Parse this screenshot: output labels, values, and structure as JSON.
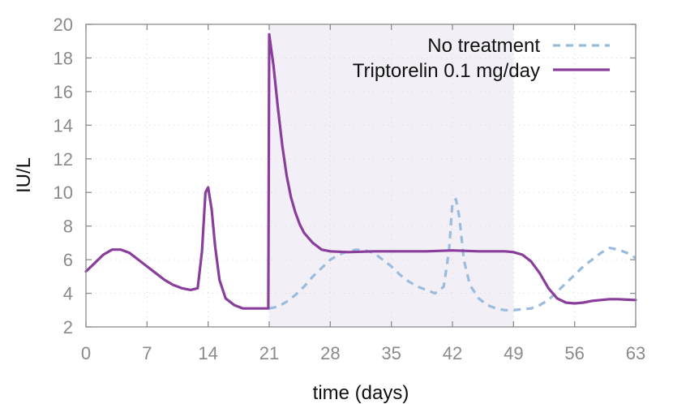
{
  "chart_data": {
    "type": "line",
    "xlabel": "time (days)",
    "ylabel": "IU/L",
    "xlim": [
      0,
      63
    ],
    "ylim": [
      2,
      20
    ],
    "x_ticks": [
      0,
      7,
      14,
      21,
      28,
      35,
      42,
      49,
      56,
      63
    ],
    "y_ticks": [
      2,
      4,
      6,
      8,
      10,
      12,
      14,
      16,
      18,
      20
    ],
    "grid": true,
    "legend_position": "top-right",
    "shaded_region": {
      "x_start": 21,
      "x_end": 49,
      "color": "#f3eff7"
    },
    "series": [
      {
        "name": "No treatment",
        "color": "#9bbcdc",
        "style": "dashed",
        "points": [
          [
            21,
            3.1
          ],
          [
            22,
            3.2
          ],
          [
            23,
            3.5
          ],
          [
            24,
            3.9
          ],
          [
            25,
            4.4
          ],
          [
            26,
            5.0
          ],
          [
            27,
            5.5
          ],
          [
            28,
            6.0
          ],
          [
            29,
            6.3
          ],
          [
            30,
            6.5
          ],
          [
            31,
            6.6
          ],
          [
            32,
            6.55
          ],
          [
            33,
            6.4
          ],
          [
            34,
            6.0
          ],
          [
            35,
            5.6
          ],
          [
            36,
            5.1
          ],
          [
            37,
            4.7
          ],
          [
            38,
            4.4
          ],
          [
            39,
            4.2
          ],
          [
            40,
            4.0
          ],
          [
            41,
            4.4
          ],
          [
            41.6,
            6.5
          ],
          [
            42,
            9.4
          ],
          [
            42.4,
            9.6
          ],
          [
            42.8,
            8.5
          ],
          [
            43.3,
            6.0
          ],
          [
            44,
            4.5
          ],
          [
            45,
            3.7
          ],
          [
            46,
            3.3
          ],
          [
            47,
            3.1
          ],
          [
            48,
            3.0
          ],
          [
            49,
            3.0
          ],
          [
            50,
            3.05
          ],
          [
            51,
            3.1
          ],
          [
            52,
            3.3
          ],
          [
            53,
            3.6
          ],
          [
            54,
            4.1
          ],
          [
            55,
            4.6
          ],
          [
            56,
            5.1
          ],
          [
            57,
            5.6
          ],
          [
            58,
            6.0
          ],
          [
            59,
            6.4
          ],
          [
            60,
            6.7
          ],
          [
            61,
            6.6
          ],
          [
            62,
            6.4
          ],
          [
            63,
            6.1
          ]
        ]
      },
      {
        "name": "Triptorelin 0.1 mg/day",
        "color": "#8a3e9c",
        "style": "solid",
        "points": [
          [
            0,
            5.3
          ],
          [
            1,
            5.8
          ],
          [
            2,
            6.3
          ],
          [
            3,
            6.6
          ],
          [
            4,
            6.6
          ],
          [
            5,
            6.4
          ],
          [
            6,
            6.0
          ],
          [
            7,
            5.6
          ],
          [
            8,
            5.2
          ],
          [
            9,
            4.8
          ],
          [
            10,
            4.5
          ],
          [
            11,
            4.3
          ],
          [
            12,
            4.2
          ],
          [
            12.8,
            4.3
          ],
          [
            13.3,
            6.5
          ],
          [
            13.7,
            10.0
          ],
          [
            14,
            10.3
          ],
          [
            14.4,
            9.0
          ],
          [
            14.8,
            6.8
          ],
          [
            15.3,
            4.8
          ],
          [
            16,
            3.7
          ],
          [
            17,
            3.3
          ],
          [
            18,
            3.1
          ],
          [
            19,
            3.1
          ],
          [
            20.9,
            3.1
          ],
          [
            21,
            19.4
          ],
          [
            21.5,
            17.5
          ],
          [
            22,
            15.0
          ],
          [
            22.5,
            12.8
          ],
          [
            23,
            11.0
          ],
          [
            23.5,
            9.7
          ],
          [
            24,
            8.8
          ],
          [
            24.5,
            8.1
          ],
          [
            25,
            7.6
          ],
          [
            26,
            7.0
          ],
          [
            27,
            6.6
          ],
          [
            28,
            6.5
          ],
          [
            30,
            6.45
          ],
          [
            33,
            6.5
          ],
          [
            36,
            6.5
          ],
          [
            39,
            6.5
          ],
          [
            42,
            6.55
          ],
          [
            45,
            6.5
          ],
          [
            48,
            6.5
          ],
          [
            49,
            6.45
          ],
          [
            50,
            6.3
          ],
          [
            51,
            5.9
          ],
          [
            52,
            5.2
          ],
          [
            53,
            4.3
          ],
          [
            54,
            3.7
          ],
          [
            55,
            3.45
          ],
          [
            56,
            3.4
          ],
          [
            57,
            3.45
          ],
          [
            58,
            3.55
          ],
          [
            59,
            3.6
          ],
          [
            60,
            3.65
          ],
          [
            61,
            3.65
          ],
          [
            62,
            3.62
          ],
          [
            63,
            3.6
          ]
        ]
      }
    ]
  }
}
